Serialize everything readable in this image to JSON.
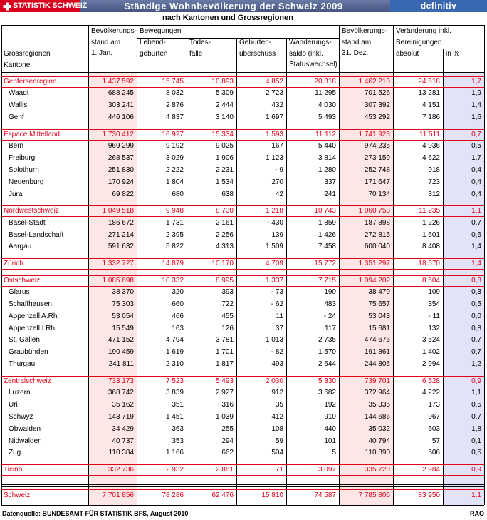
{
  "header": {
    "logo": "STATISTIK SCHWEIZ",
    "title": "Ständige Wohnbevölkerung der Schweiz 2009",
    "status": "definitiv",
    "subtitle": "nach Kantonen und Grossregionen"
  },
  "columns": {
    "label": [
      "Grossregionen",
      "Kantone"
    ],
    "start": [
      "Bevölkerungs-",
      "stand am",
      "1. Jan."
    ],
    "movements": {
      "title": "Bewegungen",
      "births": [
        "Lebend-",
        "geburten"
      ],
      "deaths": [
        "Todes-",
        "fälle"
      ],
      "surplus": [
        "Geburten-",
        "überschuss"
      ],
      "migration": [
        "Wanderungs-",
        "saldo (inkl.",
        "Statuswechsel)"
      ]
    },
    "end": [
      "Bevölkerungs-",
      "stand am",
      "31. Dez."
    ],
    "change": {
      "title": [
        "Veränderung inkl.",
        "Bereinigungen"
      ],
      "absolute": "absolut",
      "percent": "in %"
    }
  },
  "regions": [
    {
      "name": "Genferseeregion",
      "values": [
        "1 437 592",
        "15 745",
        "10 893",
        "4 852",
        "20 818",
        "1 462 210",
        "24 618",
        "1,7"
      ],
      "cantons": [
        {
          "name": "Waadt",
          "values": [
            "688 245",
            "8 032",
            "5 309",
            "2 723",
            "11 295",
            "701 526",
            "13 281",
            "1,9"
          ]
        },
        {
          "name": "Wallis",
          "values": [
            "303 241",
            "2 876",
            "2 444",
            "432",
            "4 030",
            "307 392",
            "4 151",
            "1,4"
          ]
        },
        {
          "name": "Genf",
          "values": [
            "446 106",
            "4 837",
            "3 140",
            "1 697",
            "5 493",
            "453 292",
            "7 186",
            "1,6"
          ]
        }
      ]
    },
    {
      "name": "Espace Mittelland",
      "values": [
        "1 730 412",
        "16 927",
        "15 334",
        "1 593",
        "11 112",
        "1 741 923",
        "11 511",
        "0,7"
      ],
      "cantons": [
        {
          "name": "Bern",
          "values": [
            "969 299",
            "9 192",
            "9 025",
            "167",
            "5 440",
            "974 235",
            "4 936",
            "0,5"
          ]
        },
        {
          "name": "Freiburg",
          "values": [
            "268 537",
            "3 029",
            "1 906",
            "1 123",
            "3 814",
            "273 159",
            "4 622",
            "1,7"
          ]
        },
        {
          "name": "Solothurn",
          "values": [
            "251 830",
            "2 222",
            "2 231",
            "- 9",
            "1 280",
            "252 748",
            "918",
            "0,4"
          ]
        },
        {
          "name": "Neuenburg",
          "values": [
            "170 924",
            "1 804",
            "1 534",
            "270",
            "337",
            "171 647",
            "723",
            "0,4"
          ]
        },
        {
          "name": "Jura",
          "values": [
            "69 822",
            "680",
            "638",
            "42",
            "241",
            "70 134",
            "312",
            "0,4"
          ]
        }
      ]
    },
    {
      "name": "Nordwestschweiz",
      "values": [
        "1 049 518",
        "9 948",
        "8 730",
        "1 218",
        "10 743",
        "1 060 753",
        "11 235",
        "1,1"
      ],
      "cantons": [
        {
          "name": "Basel-Stadt",
          "values": [
            "186 672",
            "1 731",
            "2 161",
            "- 430",
            "1 859",
            "187 898",
            "1 226",
            "0,7"
          ]
        },
        {
          "name": "Basel-Landschaft",
          "values": [
            "271 214",
            "2 395",
            "2 256",
            "139",
            "1 426",
            "272 815",
            "1 601",
            "0,6"
          ]
        },
        {
          "name": "Aargau",
          "values": [
            "591 632",
            "5 822",
            "4 313",
            "1 509",
            "7 458",
            "600 040",
            "8 408",
            "1,4"
          ]
        }
      ]
    },
    {
      "name": "Zürich",
      "values": [
        "1 332 727",
        "14 879",
        "10 170",
        "4 709",
        "15 772",
        "1 351 297",
        "18 570",
        "1,4"
      ],
      "cantons": []
    },
    {
      "name": "Ostschweiz",
      "values": [
        "1 085 698",
        "10 332",
        "8 995",
        "1 337",
        "7 715",
        "1 094 202",
        "8 504",
        "0,8"
      ],
      "cantons": [
        {
          "name": "Glarus",
          "values": [
            "38 370",
            "320",
            "393",
            "- 73",
            "190",
            "38 479",
            "109",
            "0,3"
          ]
        },
        {
          "name": "Schaffhausen",
          "values": [
            "75 303",
            "660",
            "722",
            "- 62",
            "483",
            "75 657",
            "354",
            "0,5"
          ]
        },
        {
          "name": "Appenzell A.Rh.",
          "values": [
            "53 054",
            "466",
            "455",
            "11",
            "- 24",
            "53 043",
            "- 11",
            "0,0"
          ]
        },
        {
          "name": "Appenzell I.Rh.",
          "values": [
            "15 549",
            "163",
            "126",
            "37",
            "117",
            "15 681",
            "132",
            "0,8"
          ]
        },
        {
          "name": "St. Gallen",
          "values": [
            "471 152",
            "4 794",
            "3 781",
            "1 013",
            "2 735",
            "474 676",
            "3 524",
            "0,7"
          ]
        },
        {
          "name": "Graubünden",
          "values": [
            "190 459",
            "1 619",
            "1 701",
            "- 82",
            "1 570",
            "191 861",
            "1 402",
            "0,7"
          ]
        },
        {
          "name": "Thurgau",
          "values": [
            "241 811",
            "2 310",
            "1 817",
            "493",
            "2 644",
            "244 805",
            "2 994",
            "1,2"
          ]
        }
      ]
    },
    {
      "name": "Zentralschweiz",
      "values": [
        "733 173",
        "7 523",
        "5 493",
        "2 030",
        "5 330",
        "739 701",
        "6 528",
        "0,9"
      ],
      "cantons": [
        {
          "name": "Luzern",
          "values": [
            "368 742",
            "3 839",
            "2 927",
            "912",
            "3 682",
            "372 964",
            "4 222",
            "1,1"
          ]
        },
        {
          "name": "Uri",
          "values": [
            "35 162",
            "351",
            "316",
            "35",
            "192",
            "35 335",
            "173",
            "0,5"
          ]
        },
        {
          "name": "Schwyz",
          "values": [
            "143 719",
            "1 451",
            "1 039",
            "412",
            "910",
            "144 686",
            "967",
            "0,7"
          ]
        },
        {
          "name": "Obwalden",
          "values": [
            "34 429",
            "363",
            "255",
            "108",
            "440",
            "35 032",
            "603",
            "1,8"
          ]
        },
        {
          "name": "Nidwalden",
          "values": [
            "40 737",
            "353",
            "294",
            "59",
            "101",
            "40 794",
            "57",
            "0,1"
          ]
        },
        {
          "name": "Zug",
          "values": [
            "110 384",
            "1 166",
            "662",
            "504",
            "5",
            "110 890",
            "506",
            "0,5"
          ]
        }
      ]
    },
    {
      "name": "Ticino",
      "values": [
        "332 736",
        "2 932",
        "2 861",
        "71",
        "3 097",
        "335 720",
        "2 984",
        "0,9"
      ],
      "cantons": []
    }
  ],
  "total": {
    "name": "Schweiz",
    "values": [
      "7 701 856",
      "78 286",
      "62 476",
      "15 810",
      "74 587",
      "7 785 806",
      "83 950",
      "1,1"
    ]
  },
  "footer": {
    "source": "Datenquelle: BUNDESAMT FÜR STATISTIK BFS, August 2010",
    "author": "RAO"
  }
}
